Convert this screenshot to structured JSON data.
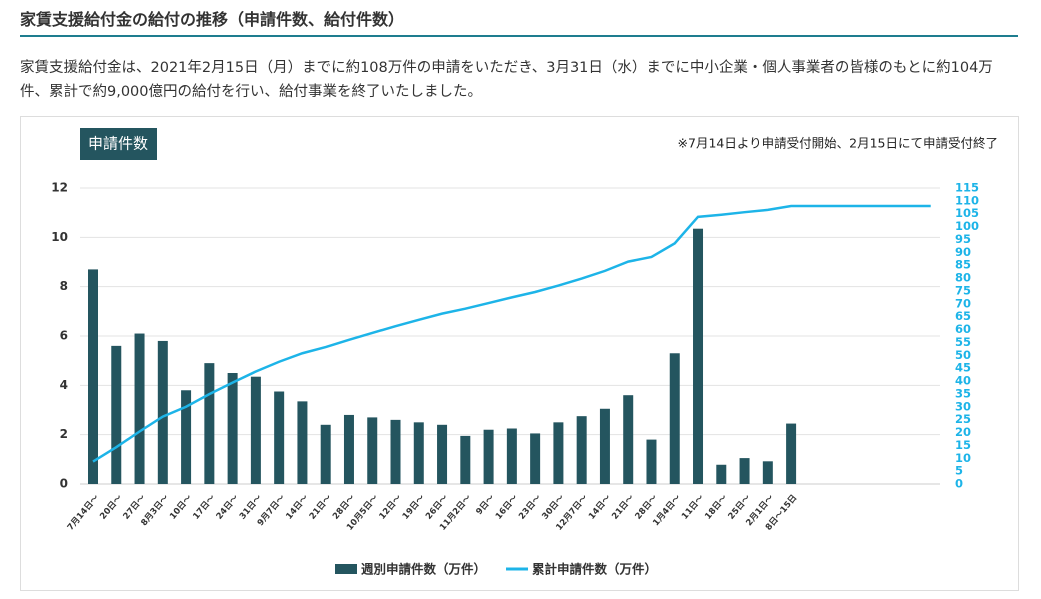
{
  "heading": "家賃支援給付金の給付の推移（申請件数、給付件数）",
  "description": "家賃支援給付金は、2021年2月15日（月）までに約108万件の申請をいただき、3月31日（水）までに中小企業・個人事業者の皆様のもとに約104万件、累計で約9,000億円の給付を行い、給付事業を終了いたしました。",
  "chart_data": {
    "type": "bar",
    "badge": "申請件数",
    "note": "※7月14日より申請受付開始、2月15日にて申請受付終了",
    "categories": [
      "7月14日〜",
      "20日〜",
      "27日〜",
      "8月3日〜",
      "10日〜",
      "17日〜",
      "24日〜",
      "31日〜",
      "9月7日〜",
      "14日〜",
      "21日〜",
      "28日〜",
      "10月5日〜",
      "12日〜",
      "19日〜",
      "26日〜",
      "11月2日〜",
      "9日〜",
      "16日〜",
      "23日〜",
      "30日〜",
      "12月7日〜",
      "14日〜",
      "21日〜",
      "28日〜",
      "1月4日〜",
      "11日〜",
      "18日〜",
      "25日〜",
      "2月1日〜",
      "8日〜15日",
      null,
      null,
      null,
      null,
      null,
      null
    ],
    "series": [
      {
        "name": "週別申請件数（万件）",
        "type": "bar",
        "color": "#24555f",
        "values": [
          8.7,
          5.6,
          6.1,
          5.8,
          3.8,
          4.9,
          4.5,
          4.35,
          3.75,
          3.35,
          2.4,
          2.8,
          2.7,
          2.6,
          2.5,
          2.4,
          1.95,
          2.2,
          2.25,
          2.05,
          2.5,
          2.75,
          3.05,
          3.6,
          1.8,
          5.3,
          10.35,
          0.78,
          1.05,
          0.92,
          2.45,
          null,
          null,
          null,
          null,
          null,
          null
        ]
      },
      {
        "name": "累計申請件数（万件）",
        "type": "line",
        "color": "#1db4e8",
        "axis": "y2",
        "values": [
          8.7,
          14.3,
          20.4,
          26.2,
          30.0,
          34.9,
          39.4,
          43.7,
          47.5,
          50.8,
          53.2,
          56.0,
          58.7,
          61.3,
          63.8,
          66.2,
          68.1,
          70.3,
          72.5,
          74.6,
          77.1,
          79.8,
          82.8,
          86.4,
          88.2,
          93.5,
          103.8,
          104.6,
          105.6,
          106.5,
          108,
          108,
          108,
          108,
          108,
          108,
          108
        ]
      }
    ],
    "ylim": [
      0,
      12
    ],
    "yticks": [
      0,
      2,
      4,
      6,
      8,
      10,
      12
    ],
    "y2lim": [
      0,
      115
    ],
    "y2ticks": [
      0,
      5,
      10,
      15,
      20,
      25,
      30,
      35,
      40,
      45,
      50,
      55,
      60,
      65,
      70,
      75,
      80,
      85,
      90,
      95,
      100,
      105,
      110,
      115
    ],
    "grid": true
  }
}
